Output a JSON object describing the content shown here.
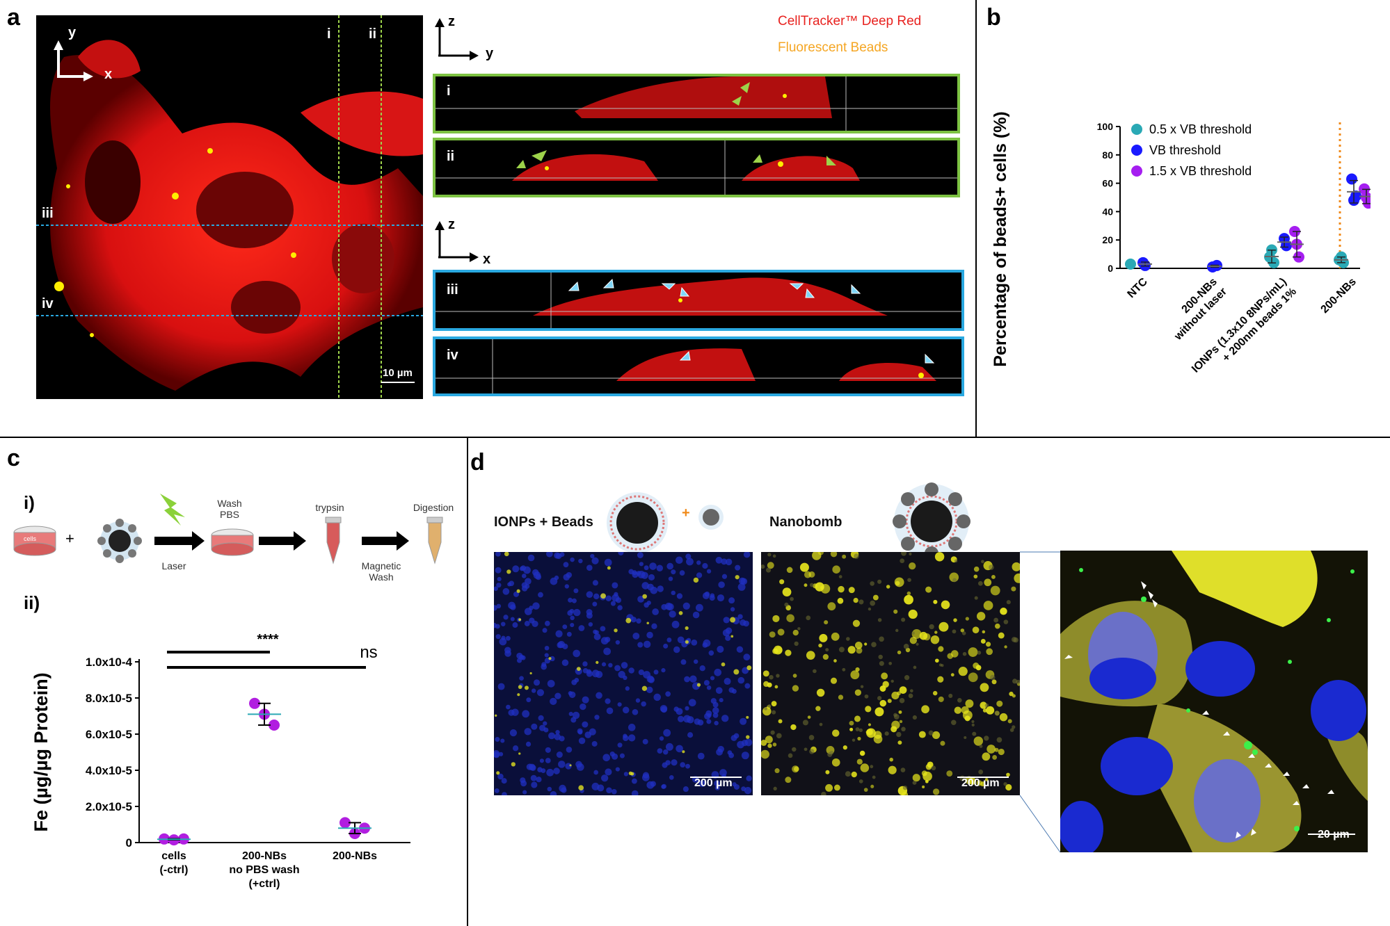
{
  "panels": {
    "a": {
      "letter": "a",
      "legend_red": "CellTracker™ Deep Red",
      "legend_orange": "Fluorescent Beads",
      "axis_y": "y",
      "axis_x": "x",
      "axis_z": "z",
      "roman_i": "i",
      "roman_ii": "ii",
      "roman_iii": "iii",
      "roman_iv": "iv",
      "scale_bar": "10 µm",
      "colors": {
        "stain": "#e8221f",
        "beads": "#f5a623",
        "xz_frame": "#29a8e0",
        "yz_frame": "#7dc242"
      }
    },
    "b": {
      "letter": "b"
    },
    "c": {
      "letter": "c",
      "sub_i": "i)",
      "sub_ii": "ii)",
      "steps": {
        "wash_pbs": "Wash\nPBS",
        "laser": "Laser",
        "trypsin": "trypsin",
        "magnetic_wash": "Magnetic\nWash",
        "digestion": "Digestion",
        "cells": "cells",
        "plus": "+"
      },
      "sig_star": "****",
      "sig_ns": "ns"
    },
    "d": {
      "letter": "d",
      "label_ionps": "IONPs + Beads",
      "label_nanobomb": "Nanobomb",
      "plus": "+",
      "scale_200_a": "200 µm",
      "scale_200_b": "200 µm",
      "scale_20": "20 µm"
    }
  },
  "chart_data": [
    {
      "id": "b",
      "type": "scatter",
      "ylabel": "Percentage of beads+ cells (%)",
      "ylim": [
        0,
        100
      ],
      "yticks": [
        "0",
        "20",
        "40",
        "60",
        "80",
        "100"
      ],
      "categories": [
        "NTC",
        "200-NBs without laser",
        "IONPs (1.3x10 8NPs/mL) + 200nm beads 1%",
        "200-NBs"
      ],
      "category_lines": [
        [
          "NTC"
        ],
        [
          "200-NBs",
          "without laser"
        ],
        [
          "IONPs (1.3x10 8NPs/mL)",
          "+ 200nm beads 1%"
        ],
        [
          "200-NBs"
        ]
      ],
      "legend_position": "top-left",
      "series": [
        {
          "name": "0.5 x VB threshold",
          "color": "#2aa9b5",
          "points": [
            [
              0,
              3
            ],
            [
              2,
              13
            ],
            [
              2,
              4
            ],
            [
              2,
              8
            ],
            [
              3,
              8
            ],
            [
              3,
              4
            ],
            [
              3,
              6
            ]
          ]
        },
        {
          "name": "VB threshold",
          "color": "#1a1aff",
          "points": [
            [
              0,
              4
            ],
            [
              0,
              2
            ],
            [
              1,
              2
            ],
            [
              1,
              1
            ],
            [
              2,
              21
            ],
            [
              2,
              16
            ],
            [
              3,
              63
            ],
            [
              3,
              48
            ],
            [
              3,
              51
            ]
          ]
        },
        {
          "name": "1.5 x VB threshold",
          "color": "#a51ef0",
          "points": [
            [
              2,
              26
            ],
            [
              2,
              17
            ],
            [
              2,
              8
            ],
            [
              3,
              56
            ],
            [
              3,
              50
            ],
            [
              3,
              46
            ]
          ]
        }
      ]
    },
    {
      "id": "c",
      "type": "scatter",
      "ylabel": "Fe (µg/µg Protein)",
      "ylim": [
        0,
        0.0001
      ],
      "yticks": [
        "0",
        "2.0x10-5",
        "4.0x10-5",
        "6.0x10-5",
        "8.0x10-5",
        "1.0x10-4"
      ],
      "categories": [
        "cells (-ctrl)",
        "200-NBs no PBS wash (+ctrl)",
        "200-NBs"
      ],
      "category_lines": [
        [
          "cells",
          "(-ctrl)"
        ],
        [
          "200-NBs",
          "no PBS wash",
          "(+ctrl)"
        ],
        [
          "200-NBs"
        ]
      ],
      "series": [
        {
          "name": "",
          "color": "#b11ee0",
          "points": [
            [
              0,
              2e-06
            ],
            [
              0,
              1.5e-06
            ],
            [
              0,
              2e-06
            ],
            [
              1,
              7.7e-05
            ],
            [
              1,
              7.1e-05
            ],
            [
              1,
              6.5e-05
            ],
            [
              2,
              1.1e-05
            ],
            [
              2,
              5e-06
            ],
            [
              2,
              8e-06
            ]
          ]
        }
      ]
    }
  ]
}
